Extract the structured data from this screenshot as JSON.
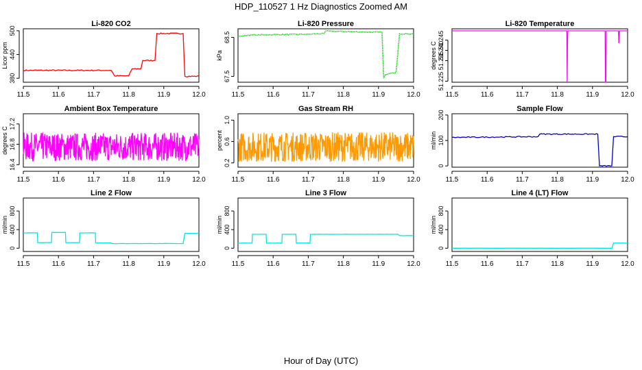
{
  "figure": {
    "title": "HDP_110527  1 Hz Diagnostics Zoomed AM",
    "xlabel": "Hour of Day (UTC)"
  },
  "chart_data": [
    {
      "type": "line",
      "title": "Li-820 CO2",
      "ylabel": "Licor ppm",
      "color": "#ff0000",
      "style": "step",
      "noise": 1.5,
      "xlim": [
        11.5,
        12.0
      ],
      "ylim": [
        370,
        505
      ],
      "xticks": [
        11.5,
        11.6,
        11.7,
        11.8,
        11.9,
        12.0
      ],
      "xtick_labels": [
        "11.5",
        "11.6",
        "11.7",
        "11.8",
        "11.9",
        "12.0"
      ],
      "yticks": [
        380,
        440,
        500
      ],
      "ytick_labels": [
        "380",
        "440",
        "500"
      ],
      "series": [
        {
          "name": "CO2",
          "x": [
            11.5,
            11.75,
            11.76,
            11.8,
            11.81,
            11.835,
            11.84,
            11.875,
            11.88,
            11.955,
            11.96,
            12.0
          ],
          "y": [
            400,
            400,
            386,
            386,
            404,
            404,
            425,
            425,
            493,
            493,
            385,
            385
          ]
        }
      ]
    },
    {
      "type": "line",
      "title": "Li-820 Pressure",
      "ylabel": "kPa",
      "color": "#00cc00",
      "style": "points",
      "noise": 0.012,
      "xlim": [
        11.5,
        12.0
      ],
      "ylim": [
        67.35,
        68.72
      ],
      "xticks": [
        11.5,
        11.6,
        11.7,
        11.8,
        11.9,
        12.0
      ],
      "xtick_labels": [
        "11.5",
        "11.6",
        "11.7",
        "11.8",
        "11.9",
        "12.0"
      ],
      "yticks": [
        67.5,
        68.5
      ],
      "ytick_labels": [
        "67.5",
        "68.5"
      ],
      "series": [
        {
          "name": "Pressure",
          "x": [
            11.5,
            11.51,
            11.53,
            11.55,
            11.6,
            11.7,
            11.745,
            11.75,
            11.85,
            11.91,
            11.915,
            11.92,
            11.95,
            11.96,
            12.0
          ],
          "y": [
            68.54,
            68.53,
            68.56,
            68.56,
            68.57,
            68.58,
            68.6,
            68.66,
            68.64,
            68.63,
            67.45,
            67.55,
            67.6,
            68.59,
            68.59
          ]
        }
      ]
    },
    {
      "type": "line",
      "title": "Li-820 Temperature",
      "ylabel": "degrees C",
      "color": "#ff00ff",
      "style": "line",
      "xlim": [
        11.5,
        12.0
      ],
      "ylim": [
        51.2245,
        51.2505
      ],
      "xticks": [
        11.5,
        11.6,
        11.7,
        11.8,
        11.9,
        12.0
      ],
      "xtick_labels": [
        "11.5",
        "11.6",
        "11.7",
        "11.8",
        "11.9",
        "12.0"
      ],
      "yticks": [
        51.225,
        51.235,
        51.24,
        51.245
      ],
      "ytick_labels": [
        "51.225",
        "51.235",
        "51.240",
        "51.245"
      ],
      "series": [
        {
          "name": "Temperature",
          "x": [
            11.5,
            11.827,
            11.828,
            11.829,
            11.83,
            11.936,
            11.937,
            11.938,
            11.939,
            11.974,
            11.975,
            11.976,
            11.977,
            12.0
          ],
          "y": [
            51.2495,
            51.2495,
            51.2245,
            51.2455,
            51.2495,
            51.2495,
            51.2245,
            51.2245,
            51.2495,
            51.2495,
            51.2435,
            51.2455,
            51.2495,
            51.2495
          ]
        }
      ]
    },
    {
      "type": "line",
      "title": "Ambient Box Temperature",
      "ylabel": "degrees C",
      "color": "#ff00ff",
      "style": "noise",
      "noise": 0.28,
      "xlim": [
        11.5,
        12.0
      ],
      "ylim": [
        16.35,
        17.4
      ],
      "xticks": [
        11.5,
        11.6,
        11.7,
        11.8,
        11.9,
        12.0
      ],
      "xtick_labels": [
        "11.5",
        "11.6",
        "11.7",
        "11.8",
        "11.9",
        "12.0"
      ],
      "yticks": [
        16.4,
        16.8,
        17.2
      ],
      "ytick_labels": [
        "16.4",
        "16.8",
        "17.2"
      ],
      "series": [
        {
          "name": "Box temperature",
          "x": [
            11.5,
            12.0
          ],
          "y": [
            16.75,
            16.75
          ]
        }
      ]
    },
    {
      "type": "line",
      "title": "Gas Stream RH",
      "ylabel": "percent",
      "color": "#ff9900",
      "style": "noise",
      "noise": 0.28,
      "xlim": [
        11.5,
        12.0
      ],
      "ylim": [
        0.12,
        1.12
      ],
      "xticks": [
        11.5,
        11.6,
        11.7,
        11.8,
        11.9,
        12.0
      ],
      "xtick_labels": [
        "11.5",
        "11.6",
        "11.7",
        "11.8",
        "11.9",
        "12.0"
      ],
      "yticks": [
        0.2,
        0.6,
        1.0
      ],
      "ytick_labels": [
        "0.2",
        "0.6",
        "1.0"
      ],
      "series": [
        {
          "name": "RH",
          "x": [
            11.5,
            12.0
          ],
          "y": [
            0.5,
            0.5
          ]
        }
      ]
    },
    {
      "type": "line",
      "title": "Sample Flow",
      "ylabel": "ml/min",
      "color": "#0000cc",
      "style": "step",
      "noise": 2,
      "xlim": [
        11.5,
        12.0
      ],
      "ylim": [
        -5,
        205
      ],
      "xticks": [
        11.5,
        11.6,
        11.7,
        11.8,
        11.9,
        12.0
      ],
      "xtick_labels": [
        "11.5",
        "11.6",
        "11.7",
        "11.8",
        "11.9",
        "12.0"
      ],
      "yticks": [
        0,
        100,
        200
      ],
      "ytick_labels": [
        "0",
        "100",
        "200"
      ],
      "series": [
        {
          "name": "Sample flow",
          "x": [
            11.5,
            11.745,
            11.75,
            11.915,
            11.92,
            11.955,
            11.96,
            12.0
          ],
          "y": [
            112,
            115,
            125,
            125,
            0,
            0,
            115,
            115
          ]
        }
      ]
    },
    {
      "type": "line",
      "title": "Line 2 Flow",
      "ylabel": "ml/min",
      "color": "#00e5e5",
      "style": "step",
      "noise": 2,
      "xlim": [
        11.5,
        12.0
      ],
      "ylim": [
        -70,
        1080
      ],
      "xticks": [
        11.5,
        11.6,
        11.7,
        11.8,
        11.9,
        12.0
      ],
      "xtick_labels": [
        "11.5",
        "11.6",
        "11.7",
        "11.8",
        "11.9",
        "12.0"
      ],
      "yticks": [
        0,
        400,
        800
      ],
      "ytick_labels": [
        "0",
        "400",
        "800"
      ],
      "series": [
        {
          "name": "Line 2",
          "x": [
            11.5,
            11.54,
            11.541,
            11.58,
            11.581,
            11.62,
            11.621,
            11.66,
            11.661,
            11.705,
            11.706,
            11.75,
            11.751,
            11.955,
            11.96,
            12.0
          ],
          "y": [
            330,
            330,
            120,
            120,
            340,
            340,
            120,
            120,
            330,
            330,
            115,
            115,
            100,
            100,
            320,
            320
          ]
        }
      ]
    },
    {
      "type": "line",
      "title": "Line 3 Flow",
      "ylabel": "ml/min",
      "color": "#00e5e5",
      "style": "step",
      "noise": 2,
      "xlim": [
        11.5,
        12.0
      ],
      "ylim": [
        -70,
        1080
      ],
      "xticks": [
        11.5,
        11.6,
        11.7,
        11.8,
        11.9,
        12.0
      ],
      "xtick_labels": [
        "11.5",
        "11.6",
        "11.7",
        "11.8",
        "11.9",
        "12.0"
      ],
      "yticks": [
        0,
        400,
        800
      ],
      "ytick_labels": [
        "0",
        "400",
        "800"
      ],
      "series": [
        {
          "name": "Line 3",
          "x": [
            11.5,
            11.54,
            11.541,
            11.58,
            11.581,
            11.625,
            11.626,
            11.665,
            11.666,
            11.705,
            11.706,
            11.955,
            11.96,
            12.0
          ],
          "y": [
            110,
            110,
            300,
            300,
            110,
            110,
            300,
            300,
            110,
            110,
            300,
            300,
            270,
            270
          ]
        }
      ]
    },
    {
      "type": "line",
      "title": "Line 4 (LT) Flow",
      "ylabel": "ml/min",
      "color": "#00e5e5",
      "style": "step",
      "noise": 1,
      "xlim": [
        11.5,
        12.0
      ],
      "ylim": [
        -70,
        1080
      ],
      "xticks": [
        11.5,
        11.6,
        11.7,
        11.8,
        11.9,
        12.0
      ],
      "xtick_labels": [
        "11.5",
        "11.6",
        "11.7",
        "11.8",
        "11.9",
        "12.0"
      ],
      "yticks": [
        0,
        400,
        800
      ],
      "ytick_labels": [
        "0",
        "400",
        "800"
      ],
      "series": [
        {
          "name": "Line 4",
          "x": [
            11.5,
            11.955,
            11.96,
            12.0
          ],
          "y": [
            0,
            0,
            110,
            110
          ]
        }
      ]
    }
  ]
}
